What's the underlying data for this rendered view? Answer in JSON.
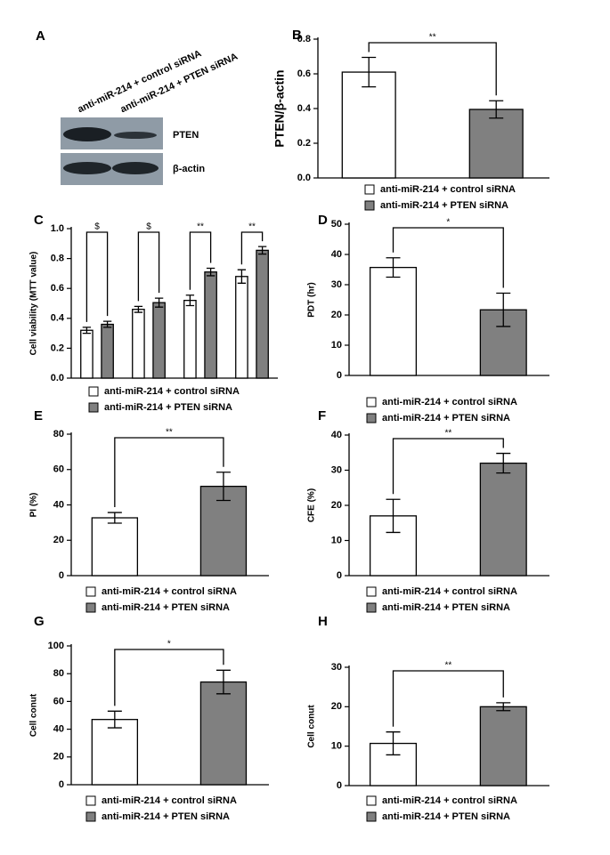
{
  "blot": {
    "label": "A",
    "lanes": [
      "anti-miR-214 + control siRNA",
      "anti-miR-214 + PTEN siRNA"
    ],
    "bands": [
      "PTEN",
      "β-actin"
    ]
  },
  "chart_data": [
    {
      "type": "bar",
      "label": "B",
      "ylabel": "PTEN/β-actin",
      "categories": [
        null
      ],
      "series": [
        {
          "name": "anti-miR-214 + control siRNA",
          "color": "#ffffff",
          "values": [
            0.61
          ],
          "errors": [
            0.085
          ]
        },
        {
          "name": "anti-miR-214 + PTEN siRNA",
          "color": "#808080",
          "values": [
            0.395
          ],
          "errors": [
            0.05
          ]
        }
      ],
      "ylim": [
        0,
        0.8
      ],
      "yticks": [
        {
          "value": 0,
          "label": "0.0"
        },
        0.2,
        0.4,
        0.6,
        0.8
      ],
      "annotations": [
        "**"
      ]
    },
    {
      "type": "bar",
      "label": "C",
      "ylabel": "Cell viability (MTT value)",
      "categories": [
        null,
        null,
        null,
        null
      ],
      "series": [
        {
          "name": "anti-miR-214 + control siRNA",
          "color": "#ffffff",
          "values": [
            0.32,
            0.46,
            0.52,
            0.68
          ],
          "errors": [
            0.02,
            0.02,
            0.035,
            0.045
          ]
        },
        {
          "name": "anti-miR-214 + PTEN siRNA",
          "color": "#808080",
          "values": [
            0.36,
            0.505,
            0.71,
            0.855
          ],
          "errors": [
            0.02,
            0.03,
            0.025,
            0.025
          ]
        }
      ],
      "ylim": [
        0,
        1
      ],
      "yticks": [
        {
          "value": 0,
          "label": "0.0"
        },
        0.2,
        0.4,
        0.6,
        0.8,
        {
          "value": 1,
          "label": "1.0"
        }
      ],
      "annotations": [
        "$",
        "$",
        "**",
        "**"
      ]
    },
    {
      "type": "bar",
      "label": "D",
      "ylabel": "PDT (hr)",
      "categories": [
        null
      ],
      "series": [
        {
          "name": "anti-miR-214 + control siRNA",
          "color": "#ffffff",
          "values": [
            35.7
          ],
          "errors": [
            3.2
          ]
        },
        {
          "name": "anti-miR-214 + PTEN siRNA",
          "color": "#808080",
          "values": [
            21.7
          ],
          "errors": [
            5.5
          ]
        }
      ],
      "ylim": [
        0,
        50
      ],
      "yticks": [
        0,
        10,
        20,
        30,
        40,
        50
      ],
      "annotations": [
        "*"
      ]
    },
    {
      "type": "bar",
      "label": "E",
      "ylabel": "PI (%)",
      "categories": [
        null
      ],
      "series": [
        {
          "name": "anti-miR-214 + control siRNA",
          "color": "#ffffff",
          "values": [
            32.7
          ],
          "errors": [
            3
          ]
        },
        {
          "name": "anti-miR-214 + PTEN siRNA",
          "color": "#808080",
          "values": [
            50.5
          ],
          "errors": [
            8
          ]
        }
      ],
      "ylim": [
        0,
        80
      ],
      "yticks": [
        0,
        20,
        40,
        60,
        80
      ],
      "annotations": [
        "**"
      ]
    },
    {
      "type": "bar",
      "label": "F",
      "ylabel": "CFE (%)",
      "categories": [
        null
      ],
      "series": [
        {
          "name": "anti-miR-214 + control siRNA",
          "color": "#ffffff",
          "values": [
            17
          ],
          "errors": [
            4.7
          ]
        },
        {
          "name": "anti-miR-214 + PTEN siRNA",
          "color": "#808080",
          "values": [
            32
          ],
          "errors": [
            2.8
          ]
        }
      ],
      "ylim": [
        0,
        40
      ],
      "yticks": [
        0,
        10,
        20,
        30,
        40
      ],
      "annotations": [
        "**"
      ]
    },
    {
      "type": "bar",
      "label": "G",
      "ylabel": "Cell conut",
      "categories": [
        null
      ],
      "series": [
        {
          "name": "anti-miR-214 + control siRNA",
          "color": "#ffffff",
          "values": [
            47
          ],
          "errors": [
            6
          ]
        },
        {
          "name": "anti-miR-214 + PTEN siRNA",
          "color": "#808080",
          "values": [
            74
          ],
          "errors": [
            8.5
          ]
        }
      ],
      "ylim": [
        0,
        100
      ],
      "yticks": [
        0,
        20,
        40,
        60,
        80,
        100
      ],
      "annotations": [
        "*"
      ]
    },
    {
      "type": "bar",
      "label": "H",
      "ylabel": "Cell conut",
      "categories": [
        null
      ],
      "series": [
        {
          "name": "anti-miR-214 + control siRNA",
          "color": "#ffffff",
          "values": [
            10.7
          ],
          "errors": [
            2.9
          ]
        },
        {
          "name": "anti-miR-214 + PTEN siRNA",
          "color": "#808080",
          "values": [
            20
          ],
          "errors": [
            1
          ]
        }
      ],
      "ylim": [
        0,
        30
      ],
      "yticks": [
        0,
        10,
        20,
        30
      ],
      "annotations": [
        "**"
      ]
    }
  ]
}
